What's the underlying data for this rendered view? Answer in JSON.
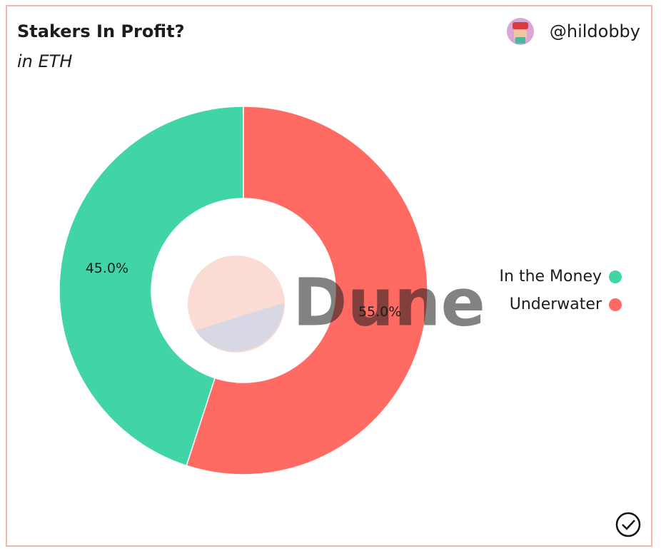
{
  "chart_data": {
    "type": "pie",
    "title": "Stakers In Profit?",
    "subtitle": "in ETH",
    "author": "@hildobby",
    "watermark": "Dune",
    "categories": [
      "In the Money",
      "Underwater"
    ],
    "series": [
      {
        "values": [
          45.0,
          55.0
        ],
        "value_labels": [
          "45.0%",
          "55.0%"
        ],
        "colors": [
          "#40d4a6",
          "#ff6b63"
        ]
      }
    ],
    "donut": true,
    "legend": "right"
  }
}
